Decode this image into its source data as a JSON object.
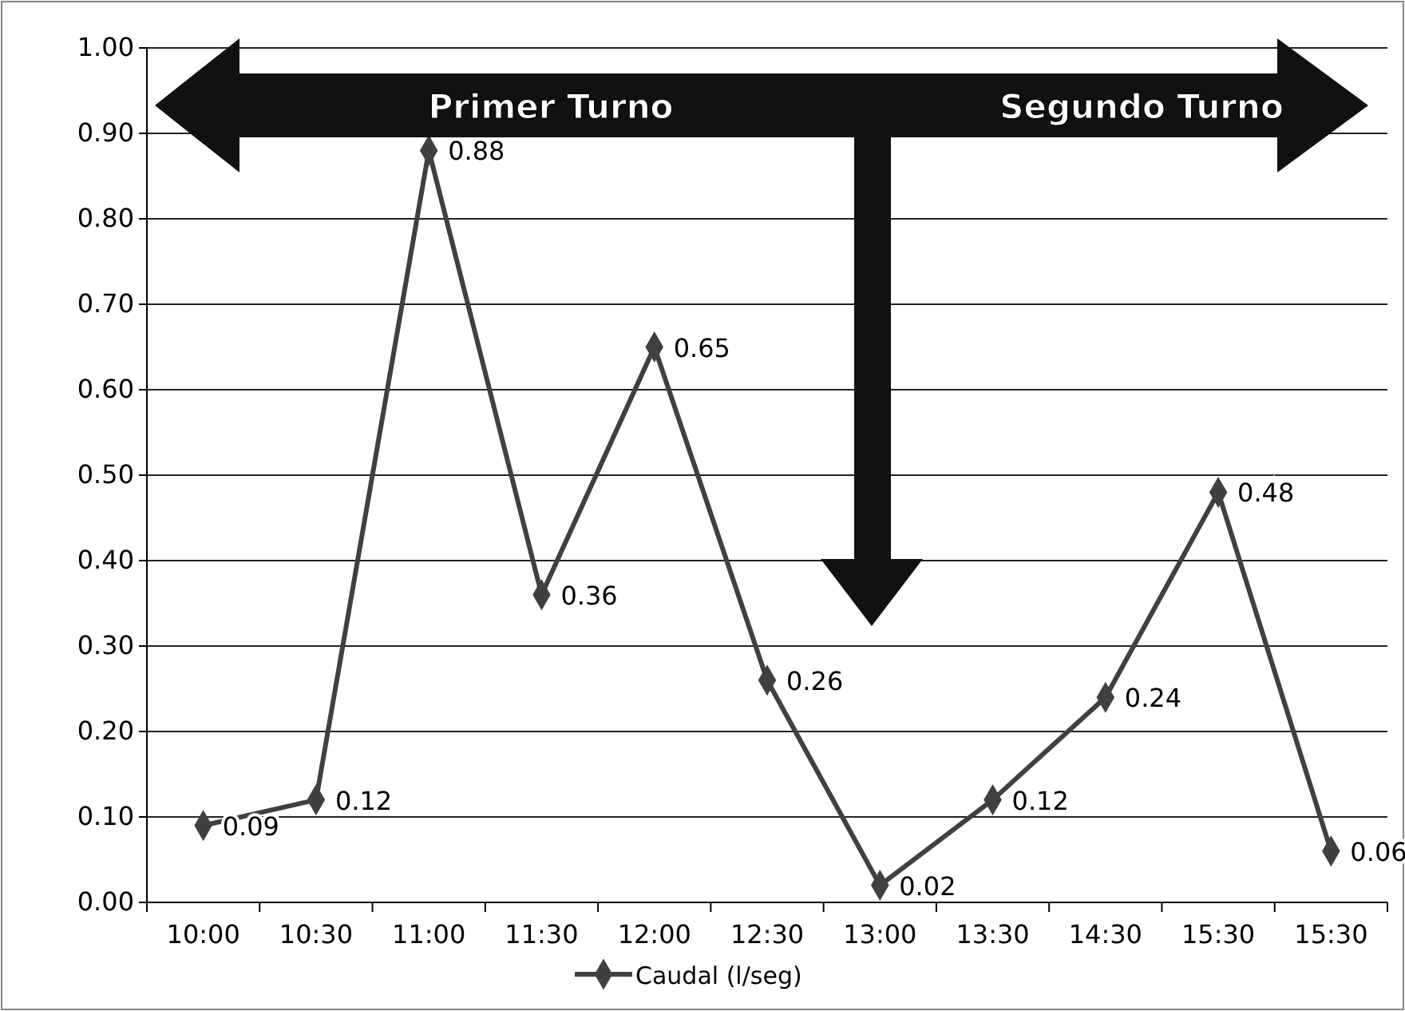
{
  "chart_data": {
    "type": "line",
    "categories": [
      "10:00",
      "10:30",
      "11:00",
      "11:30",
      "12:00",
      "12:30",
      "13:00",
      "13:30",
      "14:30",
      "15:30",
      "15:30"
    ],
    "series": [
      {
        "name": "Caudal (l/seg)",
        "color": "#404040",
        "values": [
          0.09,
          0.12,
          0.88,
          0.36,
          0.65,
          0.26,
          0.02,
          0.12,
          0.24,
          0.48,
          0.06
        ]
      }
    ],
    "ylim": [
      0,
      1
    ],
    "yticks": [
      {
        "value": 0,
        "label": "0.00"
      },
      {
        "value": 0.1,
        "label": "0.10"
      },
      {
        "value": 0.2,
        "label": "0.20"
      },
      {
        "value": 0.3,
        "label": "0.30"
      },
      {
        "value": 0.4,
        "label": "0.40"
      },
      {
        "value": 0.5,
        "label": "0.50"
      },
      {
        "value": 0.6,
        "label": "0.60"
      },
      {
        "value": 0.7,
        "label": "0.70"
      },
      {
        "value": 0.8,
        "label": "0.80"
      },
      {
        "value": 0.9,
        "label": "0.90"
      },
      {
        "value": 1,
        "label": "1.00"
      }
    ],
    "grid": "y",
    "legend": "bottom",
    "marker": "diamond",
    "line_style": "solid",
    "data_labels": true,
    "annotations": [
      "Primer Turno",
      "Segundo Turno"
    ]
  }
}
